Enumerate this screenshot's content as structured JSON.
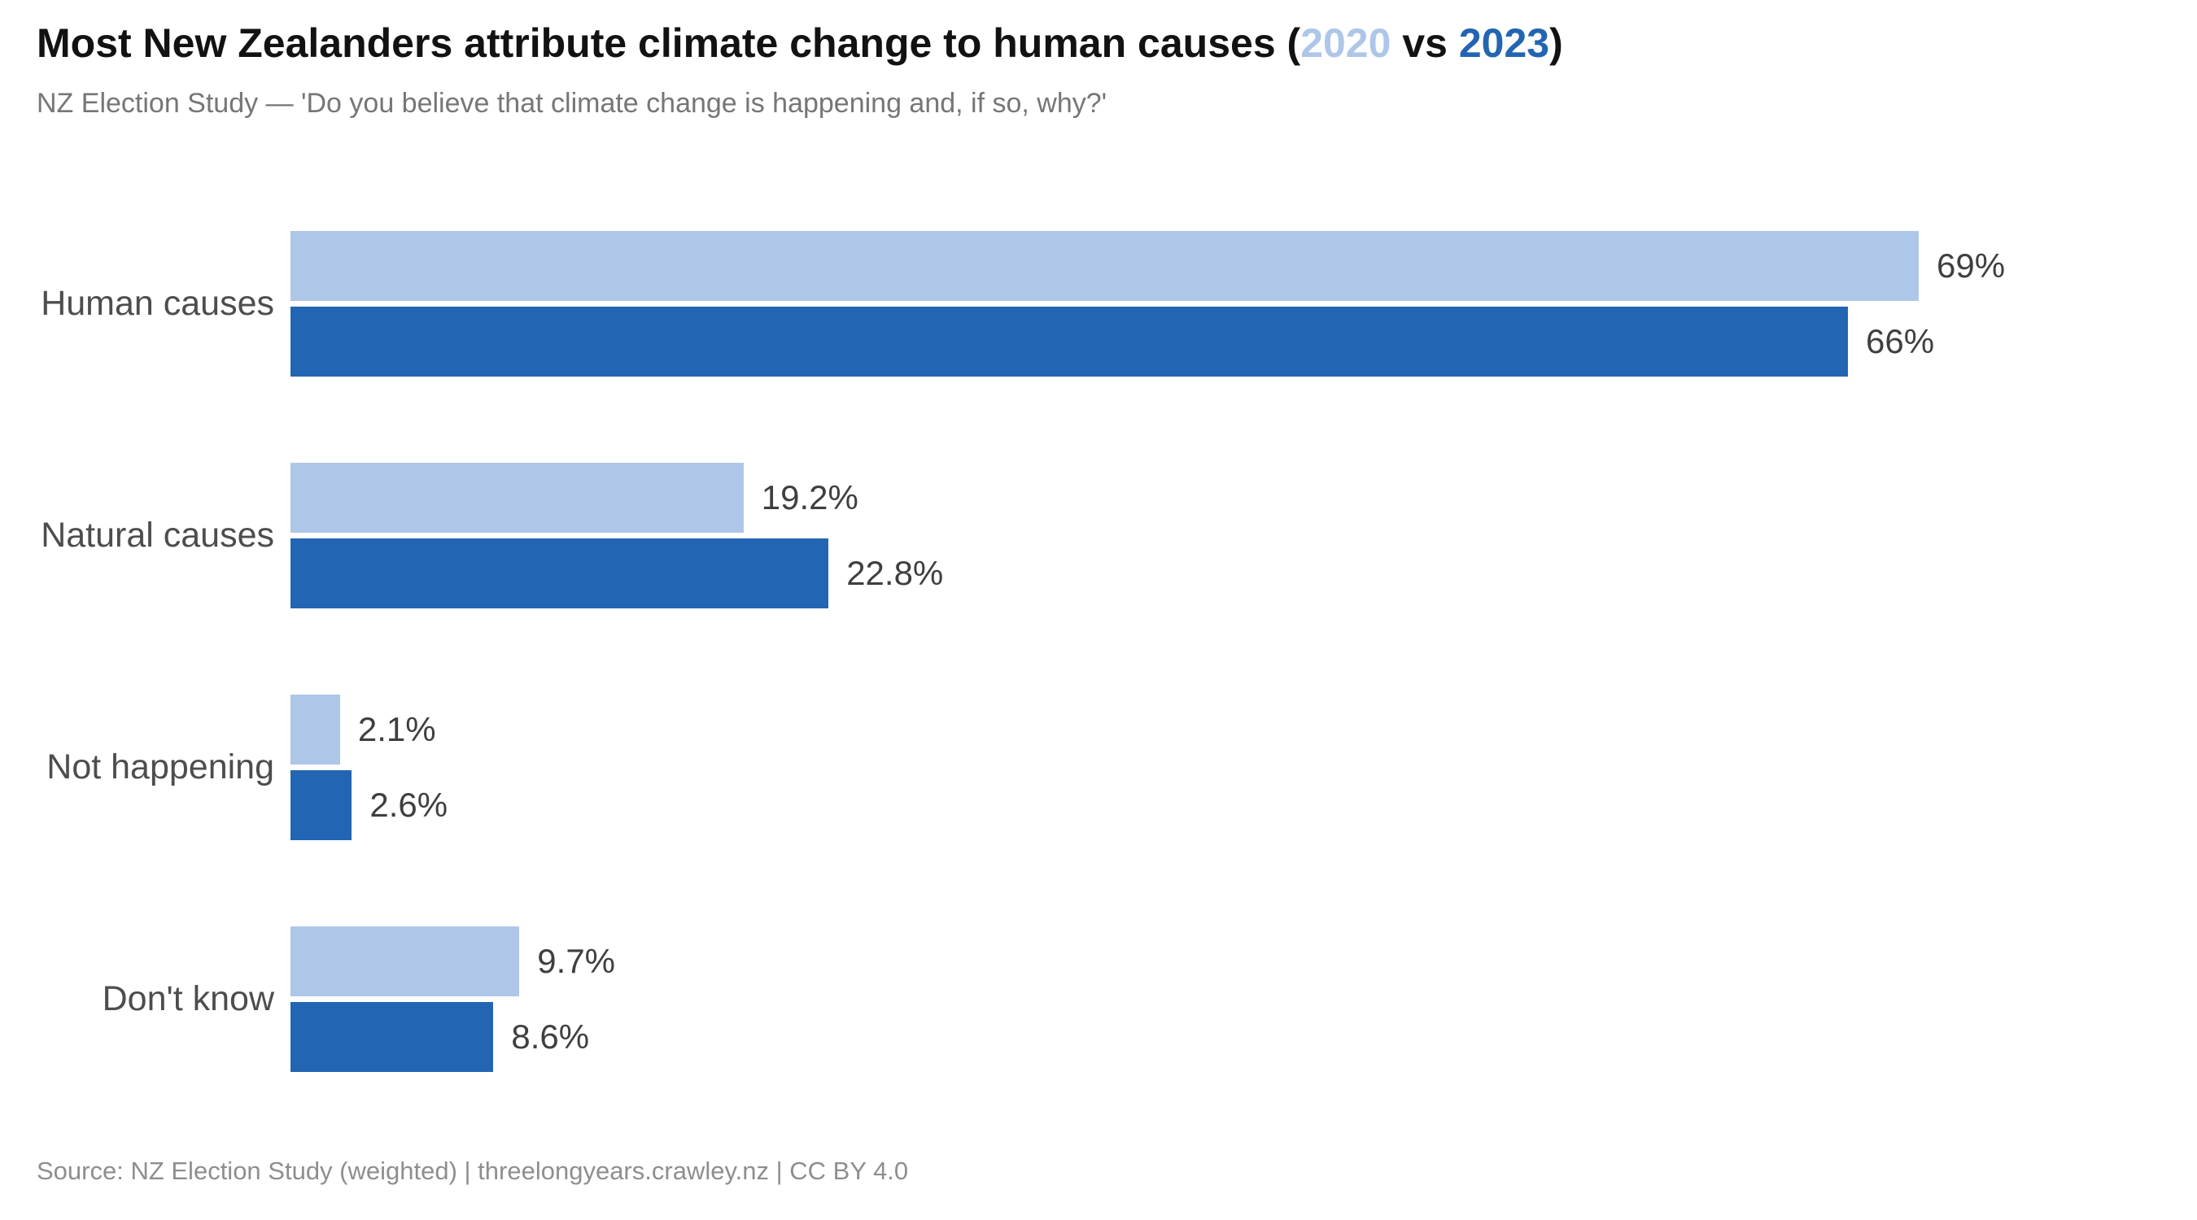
{
  "title": {
    "prefix": "Most New Zealanders attribute climate change to human causes (",
    "year1": "2020",
    "mid": " vs ",
    "year2": "2023",
    "suffix": ")"
  },
  "subtitle": "NZ Election Study — 'Do you believe that climate change is happening and, if so, why?'",
  "source": "Source: NZ Election Study (weighted) | threelongyears.crawley.nz | CC BY 4.0",
  "colors": {
    "series_2020": "#aec6e8",
    "series_2023": "#2265b2",
    "title_text": "#121212",
    "subtitle_text": "#767676",
    "category_text": "#4d4d4d",
    "value_text": "#3f3f3f",
    "source_text": "#8e8e8e",
    "background": "#ffffff"
  },
  "chart_data": {
    "type": "bar",
    "orientation": "horizontal",
    "title": "Most New Zealanders attribute climate change to human causes (2020 vs 2023)",
    "subtitle": "NZ Election Study — 'Do you believe that climate change is happening and, if so, why?'",
    "categories": [
      "Human causes",
      "Natural causes",
      "Not happening",
      "Don't know"
    ],
    "series": [
      {
        "name": "2020",
        "color": "#aec6e8",
        "values": [
          69,
          19.2,
          2.1,
          9.7
        ],
        "value_labels": [
          "69%",
          "19.2%",
          "2.1%",
          "9.7%"
        ]
      },
      {
        "name": "2023",
        "color": "#2265b2",
        "values": [
          66,
          22.8,
          2.6,
          8.6
        ],
        "value_labels": [
          "66%",
          "22.8%",
          "2.6%",
          "8.6%"
        ]
      }
    ],
    "unit": "percent",
    "xlim": [
      0,
      69
    ],
    "grid": false,
    "axes_visible": false,
    "legend_position": "in-title",
    "value_labels_position": "right-of-bar"
  }
}
